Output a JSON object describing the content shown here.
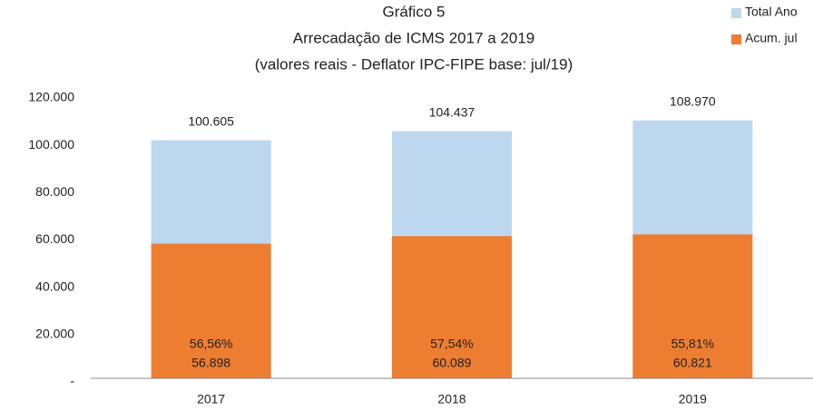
{
  "chart_data": {
    "type": "bar",
    "title": [
      "Gráfico 5",
      "Arrecadação de ICMS 2017 a 2019",
      "(valores reais - Deflator IPC-FIPE base: jul/19)"
    ],
    "categories": [
      "2017",
      "2018",
      "2019"
    ],
    "series": [
      {
        "name": "Total Ano",
        "color": "#bdd7ee",
        "values": [
          100605,
          104437,
          108970
        ],
        "value_labels": [
          "100.605",
          "104.437",
          "108.970"
        ]
      },
      {
        "name": "Acum. jul",
        "color": "#ed7d31",
        "values": [
          56898,
          60089,
          60821
        ],
        "value_labels": [
          "56.898",
          "60.089",
          "60.821"
        ],
        "percent_labels": [
          "56,56%",
          "57,54%",
          "55,81%"
        ]
      }
    ],
    "ylim": [
      0,
      120000
    ],
    "yticks": [
      {
        "value": 0,
        "label": "-"
      },
      {
        "value": 20000,
        "label": "20.000"
      },
      {
        "value": 40000,
        "label": "40.000"
      },
      {
        "value": 60000,
        "label": "60.000"
      },
      {
        "value": 80000,
        "label": "80.000"
      },
      {
        "value": 100000,
        "label": "100.000"
      },
      {
        "value": 120000,
        "label": "120.000"
      }
    ],
    "legend": "top-right",
    "overlap": true
  }
}
